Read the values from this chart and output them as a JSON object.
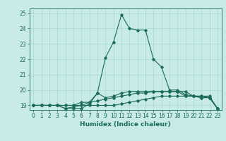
{
  "xlabel": "Humidex (Indice chaleur)",
  "ylabel": "",
  "xlim_min": -0.5,
  "xlim_max": 23.5,
  "ylim_min": 18.7,
  "ylim_max": 25.3,
  "xticks": [
    0,
    1,
    2,
    3,
    4,
    5,
    6,
    7,
    8,
    9,
    10,
    11,
    12,
    13,
    14,
    15,
    16,
    17,
    18,
    19,
    20,
    21,
    22,
    23
  ],
  "yticks": [
    19,
    20,
    21,
    22,
    23,
    24,
    25
  ],
  "background_color": "#c8ebe8",
  "grid_color": "#a8d8d4",
  "line_color": "#1a6b5a",
  "series": [
    [
      19.0,
      19.0,
      19.0,
      19.0,
      18.8,
      18.8,
      18.8,
      19.1,
      19.8,
      19.5,
      19.6,
      19.8,
      19.9,
      19.9,
      19.9,
      19.9,
      19.9,
      19.9,
      19.9,
      19.6,
      19.6,
      19.5,
      19.5,
      18.8
    ],
    [
      19.0,
      19.0,
      19.0,
      19.0,
      19.0,
      19.0,
      19.0,
      19.0,
      19.0,
      19.0,
      19.0,
      19.1,
      19.2,
      19.3,
      19.4,
      19.5,
      19.6,
      19.6,
      19.6,
      19.6,
      19.6,
      19.6,
      19.6,
      18.8
    ],
    [
      19.0,
      19.0,
      19.0,
      19.0,
      19.0,
      19.0,
      19.2,
      19.2,
      19.3,
      19.4,
      19.5,
      19.6,
      19.7,
      19.8,
      19.8,
      19.9,
      19.9,
      19.9,
      19.9,
      19.9,
      19.6,
      19.5,
      19.5,
      18.8
    ],
    [
      19.0,
      19.0,
      19.0,
      19.0,
      18.8,
      18.9,
      19.0,
      19.2,
      19.8,
      22.1,
      23.1,
      24.9,
      24.0,
      23.9,
      23.9,
      22.0,
      21.5,
      20.0,
      20.0,
      19.7,
      19.6,
      19.6,
      19.5,
      18.8
    ]
  ],
  "tick_fontsize": 5.5,
  "xlabel_fontsize": 6.5,
  "linewidth": 0.8,
  "markersize": 1.8
}
